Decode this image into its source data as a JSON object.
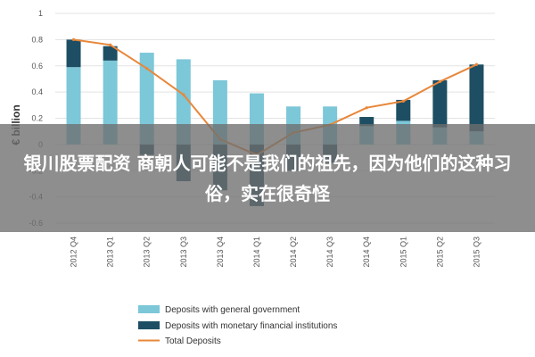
{
  "chart_data": {
    "type": "bar",
    "stacked": true,
    "ylabel": "€ billion",
    "ylim": [
      -0.6,
      1
    ],
    "yticks": [
      "1",
      "0.8",
      "0.6",
      "0.4",
      "0.2",
      "0",
      "-0.2",
      "-0.4",
      "-0.6"
    ],
    "grid": true,
    "legend_position": "bottom",
    "categories": [
      "2012 Q4",
      "2013 Q1",
      "2013 Q2",
      "2013 Q3",
      "2013 Q4",
      "2014 Q1",
      "2014 Q2",
      "2014 Q3",
      "2014 Q4",
      "2015 Q1",
      "2015 Q2",
      "2015 Q3"
    ],
    "series": [
      {
        "name": "Deposits with general government",
        "kind": "bar",
        "color": "#7cc7d8",
        "values": [
          0.59,
          0.64,
          0.7,
          0.65,
          0.49,
          0.39,
          0.29,
          0.29,
          0.14,
          0.18,
          0.13,
          0.1
        ]
      },
      {
        "name": "Deposits with monetary financial institutions",
        "kind": "bar",
        "color": "#1e4e63",
        "values": [
          0.21,
          0.11,
          -0.08,
          -0.28,
          -0.35,
          -0.47,
          -0.2,
          -0.14,
          0.07,
          0.16,
          0.36,
          0.51
        ]
      },
      {
        "name": "Total Deposits",
        "kind": "line",
        "color": "#e8873a",
        "values": [
          0.8,
          0.76,
          0.58,
          0.38,
          0.04,
          -0.08,
          0.09,
          0.15,
          0.28,
          0.33,
          0.48,
          0.61
        ]
      }
    ]
  },
  "overlay": {
    "text": "银川股票配资 商朝人可能不是我们的祖先，因为他们的这种习俗，实在很奇怪"
  }
}
